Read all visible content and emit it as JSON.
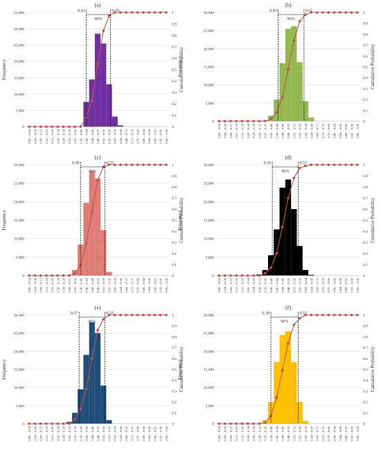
{
  "axis_labels": {
    "left": "Frequency",
    "right": "Cumulative Probability",
    "y_left_ticks": [
      "0",
      "5,000",
      "10,000",
      "15,000",
      "20,000",
      "25,000",
      "30,000",
      "35,000"
    ],
    "y_right_ticks": [
      "0",
      "0.1",
      "0.2",
      "0.3",
      "0.4",
      "0.5",
      "0.6",
      "0.7",
      "0.8",
      "0.9",
      "1"
    ]
  },
  "bin_labels": [
    "0.00 – 0.04",
    "0.04 – 0.08",
    "0.08 – 0.12",
    "0.12 – 0.16",
    "0.16 – 0.20",
    "0.20 – 0.24",
    "0.24 – 0.28",
    "0.28 – 0.32",
    "0.32 – 0.36",
    "0.36 – 0.40",
    "0.40 – 0.44",
    "0.44 – 0.48",
    "0.48 – 0.52",
    "0.52 – 0.56",
    "0.56 – 0.60",
    "0.60 – 0.64",
    "0.64 – 0.68",
    "0.68 – 0.72",
    "0.72 – 0.76",
    "0.76 – 0.80",
    "0.80 – 0.84",
    "0.84 – 0.88",
    "0.88 – 0.92",
    "0.92 – 0.96",
    "0.96 – 1.00"
  ],
  "chart_data": [
    {
      "panel": "(a)",
      "type": "bar",
      "bar_color": "#7030a0",
      "line_color": "#c0504d",
      "ylim_left": [
        0,
        35000
      ],
      "ylim_right": [
        0,
        1
      ],
      "grid": true,
      "values": [
        0,
        0,
        0,
        0,
        0,
        0,
        0,
        0,
        0,
        0,
        7600,
        14500,
        28500,
        25500,
        13000,
        3100,
        400,
        0,
        0,
        0,
        0,
        0,
        0,
        0,
        0
      ],
      "cumulative": [
        0,
        0,
        0,
        0,
        0,
        0,
        0,
        0,
        0,
        0,
        0.08,
        0.23,
        0.55,
        0.84,
        0.97,
        1,
        1,
        1,
        1,
        1,
        1,
        1,
        1,
        1,
        1
      ],
      "ci_low": 0.42,
      "ci_high": 0.59,
      "ci_low_label": "0.42",
      "ci_high_label": "0.59",
      "ci_label": "90%"
    },
    {
      "panel": "(b)",
      "type": "bar",
      "bar_color": "#92b84f",
      "line_color": "#c0504d",
      "ylim_left": [
        0,
        30000
      ],
      "ylim_right": [
        0,
        1
      ],
      "grid": true,
      "values": [
        0,
        0,
        0,
        0,
        0,
        0,
        0,
        0,
        200,
        1500,
        6000,
        16000,
        25500,
        26200,
        16300,
        5500,
        1000,
        0,
        0,
        0,
        0,
        0,
        0,
        0,
        0
      ],
      "cumulative": [
        0,
        0,
        0,
        0,
        0,
        0,
        0,
        0,
        0,
        0.02,
        0.08,
        0.22,
        0.48,
        0.74,
        0.92,
        0.98,
        1,
        1,
        1,
        1,
        1,
        1,
        1,
        1,
        1
      ],
      "ci_low": 0.43,
      "ci_high": 0.61,
      "ci_low_label": "0.43",
      "ci_high_label": "0.61",
      "ci_label": "90%"
    },
    {
      "panel": "(c)",
      "type": "bar",
      "bar_color": "#e07c74",
      "line_color": "#c0504d",
      "ylim_left": [
        0,
        30000
      ],
      "ylim_right": [
        0,
        1
      ],
      "grid": true,
      "values": [
        0,
        0,
        0,
        0,
        0,
        0,
        0,
        0,
        1500,
        8400,
        19700,
        28300,
        26300,
        12300,
        1000,
        0,
        0,
        0,
        0,
        0,
        0,
        0,
        0,
        0,
        0
      ],
      "cumulative": [
        0,
        0,
        0,
        0,
        0,
        0,
        0,
        0,
        0.02,
        0.09,
        0.29,
        0.58,
        0.86,
        0.98,
        1,
        1,
        1,
        1,
        1,
        1,
        1,
        1,
        1,
        1,
        1
      ],
      "ci_low": 0.38,
      "ci_high": 0.55,
      "ci_low_label": "0.38",
      "ci_high_label": "0.55",
      "ci_label": "90%"
    },
    {
      "panel": "(d)",
      "type": "bar",
      "bar_color": "#000000",
      "line_color": "#c0504d",
      "ylim_left": [
        0,
        30000
      ],
      "ylim_right": [
        0,
        1
      ],
      "grid": true,
      "values": [
        0,
        0,
        0,
        0,
        0,
        0,
        0,
        300,
        1500,
        5500,
        12500,
        23800,
        26000,
        18000,
        8000,
        1500,
        200,
        0,
        0,
        0,
        0,
        0,
        0,
        0,
        0
      ],
      "cumulative": [
        0,
        0,
        0,
        0,
        0,
        0,
        0,
        0,
        0.02,
        0.07,
        0.2,
        0.44,
        0.7,
        0.88,
        0.97,
        0.99,
        1,
        1,
        1,
        1,
        1,
        1,
        1,
        1,
        1
      ],
      "ci_low": 0.39,
      "ci_high": 0.57,
      "ci_low_label": "0.39",
      "ci_high_label": "0.57",
      "ci_label": "90%"
    },
    {
      "panel": "(e)",
      "type": "bar",
      "bar_color": "#1f4e79",
      "line_color": "#c0504d",
      "ylim_left": [
        0,
        30000
      ],
      "ylim_right": [
        0,
        1
      ],
      "grid": true,
      "values": [
        0,
        0,
        0,
        0,
        0,
        0,
        0,
        500,
        3000,
        9500,
        19000,
        28000,
        25000,
        10500,
        1000,
        0,
        0,
        0,
        0,
        0,
        0,
        0,
        0,
        0,
        0
      ],
      "cumulative": [
        0,
        0,
        0,
        0,
        0,
        0,
        0,
        0,
        0.04,
        0.13,
        0.32,
        0.6,
        0.86,
        0.96,
        1,
        1,
        1,
        1,
        1,
        1,
        1,
        1,
        1,
        1,
        1
      ],
      "ci_low": 0.37,
      "ci_high": 0.55,
      "ci_low_label": "0.37",
      "ci_high_label": "0.55",
      "ci_label": "90%"
    },
    {
      "panel": "(f)",
      "type": "bar",
      "bar_color": "#ffc000",
      "line_color": "#c0504d",
      "ylim_left": [
        0,
        30000
      ],
      "ylim_right": [
        0,
        1
      ],
      "grid": true,
      "values": [
        0,
        0,
        0,
        0,
        0,
        0,
        0,
        0,
        1000,
        6000,
        17000,
        24500,
        25500,
        17000,
        6000,
        800,
        0,
        0,
        0,
        0,
        0,
        0,
        0,
        0,
        0
      ],
      "cumulative": [
        0,
        0,
        0,
        0,
        0,
        0,
        0,
        0,
        0.01,
        0.07,
        0.24,
        0.49,
        0.74,
        0.91,
        0.97,
        1,
        1,
        1,
        1,
        1,
        1,
        1,
        1,
        1,
        1
      ],
      "ci_low": 0.38,
      "ci_high": 0.57,
      "ci_low_label": "0.38",
      "ci_high_label": "0.57",
      "ci_label": "90%"
    }
  ]
}
